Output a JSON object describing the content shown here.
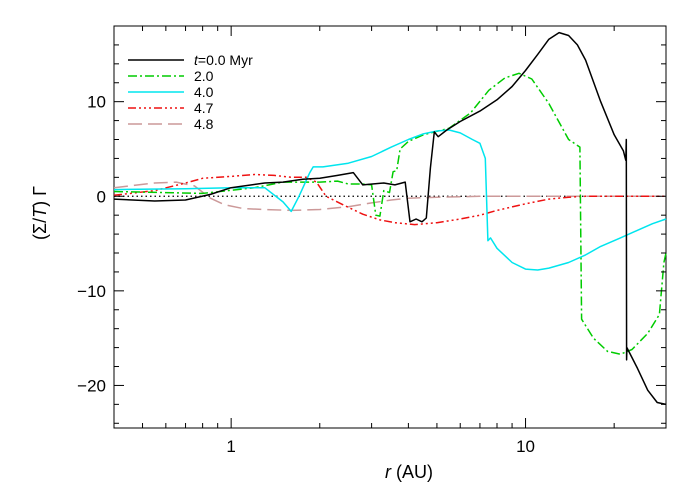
{
  "chart_data": {
    "type": "line",
    "title": "",
    "xlabel_var": "r",
    "xlabel_unit": " (AU)",
    "ylabel_open": "(Σ/",
    "ylabel_var": "T",
    "ylabel_close": ") Γ",
    "xscale": "log",
    "xlim": [
      0.4,
      30
    ],
    "ylim": [
      -24.5,
      18
    ],
    "x_ticks": [
      {
        "value": 1,
        "label": "1"
      },
      {
        "value": 10,
        "label": "10"
      }
    ],
    "y_ticks": [
      {
        "value": -20,
        "label": "−20"
      },
      {
        "value": -10,
        "label": "−10"
      },
      {
        "value": 0,
        "label": "0"
      },
      {
        "value": 10,
        "label": "10"
      }
    ],
    "reference_line": {
      "y": 0,
      "style": "dotted",
      "color": "#000000"
    },
    "legend": {
      "placement": "top-left",
      "time_prefix": "t",
      "time_suffix": "=0.0 Myr"
    },
    "series": [
      {
        "name": "0.0 Myr",
        "legend_label": "=0.0 Myr",
        "color": "#000000",
        "dash": "",
        "points": [
          [
            0.4,
            -0.3
          ],
          [
            0.55,
            -0.5
          ],
          [
            0.7,
            -0.4
          ],
          [
            0.85,
            0.2
          ],
          [
            1.0,
            0.9
          ],
          [
            1.3,
            1.4
          ],
          [
            1.5,
            1.5
          ],
          [
            1.75,
            1.8
          ],
          [
            2.0,
            1.9
          ],
          [
            2.3,
            2.2
          ],
          [
            2.6,
            2.5
          ],
          [
            2.8,
            1.2
          ],
          [
            3.3,
            1.4
          ],
          [
            3.6,
            1.2
          ],
          [
            3.9,
            1.5
          ],
          [
            4.05,
            -2.7
          ],
          [
            4.25,
            -2.4
          ],
          [
            4.45,
            -2.7
          ],
          [
            4.6,
            -2.3
          ],
          [
            4.75,
            3.0
          ],
          [
            4.9,
            6.8
          ],
          [
            5.05,
            6.3
          ],
          [
            5.4,
            7.0
          ],
          [
            6.0,
            7.9
          ],
          [
            7.0,
            9.0
          ],
          [
            8.0,
            10.2
          ],
          [
            9.0,
            11.6
          ],
          [
            10.0,
            13.3
          ],
          [
            11.0,
            15.0
          ],
          [
            12.0,
            16.6
          ],
          [
            13.0,
            17.3
          ],
          [
            14.0,
            17.0
          ],
          [
            15.0,
            16.0
          ],
          [
            16.0,
            14.4
          ],
          [
            18.0,
            10.0
          ],
          [
            20.0,
            6.5
          ],
          [
            21.5,
            4.8
          ],
          [
            21.9,
            3.8
          ],
          [
            22.0,
            6.0
          ],
          [
            22.05,
            -17.3
          ],
          [
            22.1,
            -16.0
          ],
          [
            24.0,
            -18.2
          ],
          [
            26.0,
            -20.5
          ],
          [
            28.0,
            -21.8
          ],
          [
            30.0,
            -22.0
          ]
        ]
      },
      {
        "name": "2.0",
        "legend_label": "2.0",
        "color": "#00cc00",
        "dash": "9 3 2 3",
        "points": [
          [
            0.4,
            0.5
          ],
          [
            0.8,
            0.3
          ],
          [
            1.2,
            0.9
          ],
          [
            1.5,
            1.5
          ],
          [
            2.0,
            1.5
          ],
          [
            2.3,
            1.6
          ],
          [
            2.5,
            1.3
          ],
          [
            2.8,
            1.3
          ],
          [
            3.0,
            1.2
          ],
          [
            3.1,
            -2.0
          ],
          [
            3.2,
            -2.1
          ],
          [
            3.3,
            0.6
          ],
          [
            3.45,
            0.4
          ],
          [
            3.55,
            2.6
          ],
          [
            3.65,
            2.7
          ],
          [
            3.75,
            5.0
          ],
          [
            4.0,
            5.8
          ],
          [
            4.5,
            6.5
          ],
          [
            5.5,
            7.2
          ],
          [
            6.5,
            8.8
          ],
          [
            7.5,
            11.2
          ],
          [
            8.5,
            12.5
          ],
          [
            9.5,
            13.0
          ],
          [
            10.5,
            12.4
          ],
          [
            12.0,
            9.8
          ],
          [
            14.0,
            6.0
          ],
          [
            15.3,
            5.2
          ],
          [
            15.5,
            -13.0
          ],
          [
            17.0,
            -15.0
          ],
          [
            19.0,
            -16.4
          ],
          [
            21.0,
            -16.7
          ],
          [
            23.0,
            -16.2
          ],
          [
            26.0,
            -14.5
          ],
          [
            28.5,
            -12.5
          ],
          [
            29.5,
            -7.0
          ],
          [
            30.0,
            -6.0
          ]
        ]
      },
      {
        "name": "4.0",
        "legend_label": "4.0",
        "color": "#00e5ee",
        "dash": "",
        "points": [
          [
            0.4,
            0.7
          ],
          [
            0.7,
            0.8
          ],
          [
            1.0,
            0.9
          ],
          [
            1.3,
            0.9
          ],
          [
            1.5,
            -0.6
          ],
          [
            1.6,
            -1.6
          ],
          [
            1.7,
            0.0
          ],
          [
            1.85,
            2.5
          ],
          [
            1.9,
            3.1
          ],
          [
            2.05,
            3.1
          ],
          [
            2.5,
            3.5
          ],
          [
            3.0,
            4.2
          ],
          [
            3.5,
            5.2
          ],
          [
            4.0,
            6.0
          ],
          [
            4.5,
            6.6
          ],
          [
            5.0,
            6.9
          ],
          [
            5.5,
            7.0
          ],
          [
            6.0,
            6.7
          ],
          [
            6.6,
            6.0
          ],
          [
            7.0,
            5.6
          ],
          [
            7.3,
            4.0
          ],
          [
            7.45,
            -4.7
          ],
          [
            7.6,
            -4.4
          ],
          [
            8.0,
            -5.5
          ],
          [
            9.0,
            -7.0
          ],
          [
            10.0,
            -7.7
          ],
          [
            11.0,
            -7.8
          ],
          [
            12.0,
            -7.6
          ],
          [
            14.0,
            -7.0
          ],
          [
            16.0,
            -6.2
          ],
          [
            18.0,
            -5.3
          ],
          [
            21.0,
            -4.4
          ],
          [
            24.0,
            -3.6
          ],
          [
            27.0,
            -2.9
          ],
          [
            30.0,
            -2.4
          ]
        ]
      },
      {
        "name": "4.7",
        "legend_label": "4.7",
        "color": "#ee1111",
        "dash": "8 3 2 3 2 3 2 3",
        "points": [
          [
            0.4,
            0.1
          ],
          [
            0.55,
            0.6
          ],
          [
            0.7,
            1.4
          ],
          [
            0.8,
            1.9
          ],
          [
            1.0,
            2.1
          ],
          [
            1.2,
            2.3
          ],
          [
            1.4,
            2.2
          ],
          [
            1.6,
            2.0
          ],
          [
            1.8,
            2.0
          ],
          [
            1.95,
            1.5
          ],
          [
            2.1,
            0.0
          ],
          [
            2.4,
            -0.9
          ],
          [
            2.8,
            -1.9
          ],
          [
            3.2,
            -2.5
          ],
          [
            3.6,
            -2.8
          ],
          [
            4.2,
            -3.0
          ],
          [
            5.0,
            -2.8
          ],
          [
            6.0,
            -2.4
          ],
          [
            7.0,
            -2.0
          ],
          [
            8.0,
            -1.5
          ],
          [
            10.0,
            -0.8
          ],
          [
            12.0,
            -0.3
          ],
          [
            14.0,
            -0.1
          ],
          [
            16.0,
            0.0
          ],
          [
            20.0,
            0.0
          ],
          [
            30.0,
            0.0
          ]
        ]
      },
      {
        "name": "4.8",
        "legend_label": "4.8",
        "color": "#cc9999",
        "dash": "14 6",
        "points": [
          [
            0.4,
            0.9
          ],
          [
            0.55,
            1.4
          ],
          [
            0.65,
            1.5
          ],
          [
            0.75,
            1.1
          ],
          [
            0.85,
            -0.2
          ],
          [
            0.95,
            -0.9
          ],
          [
            1.1,
            -1.3
          ],
          [
            1.3,
            -1.4
          ],
          [
            1.6,
            -1.5
          ],
          [
            2.0,
            -1.4
          ],
          [
            2.5,
            -1.1
          ],
          [
            3.0,
            -0.7
          ],
          [
            3.5,
            -0.4
          ],
          [
            4.0,
            -0.2
          ],
          [
            5.0,
            -0.1
          ],
          [
            7.0,
            0.0
          ],
          [
            30.0,
            0.0
          ]
        ]
      }
    ]
  }
}
